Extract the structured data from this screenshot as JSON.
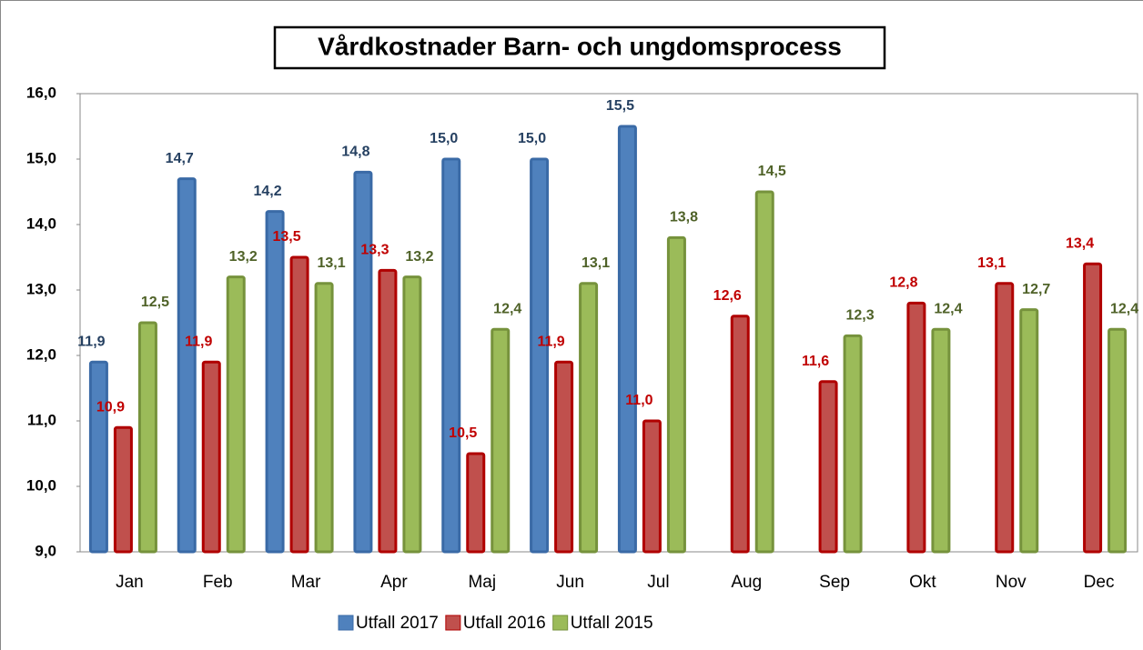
{
  "chart_data": {
    "type": "bar",
    "title": "Vårdkostnader Barn- och ungdomsprocess",
    "categories": [
      "Jan",
      "Feb",
      "Mar",
      "Apr",
      "Maj",
      "Jun",
      "Jul",
      "Aug",
      "Sep",
      "Okt",
      "Nov",
      "Dec"
    ],
    "series": [
      {
        "name": "Utfall 2017",
        "color": "#4f81bd",
        "stroke": "#3a6aa6",
        "label_color": "#254061",
        "values": [
          11.9,
          14.7,
          14.2,
          14.8,
          15.0,
          15.0,
          15.5,
          null,
          null,
          null,
          null,
          null
        ],
        "value_labels": [
          "11,9",
          "14,7",
          "14,2",
          "14,8",
          "15,0",
          "15,0",
          "15,5",
          null,
          null,
          null,
          null,
          null
        ]
      },
      {
        "name": "Utfall 2016",
        "color": "#c0504d",
        "stroke": "#b00000",
        "label_color": "#c00000",
        "values": [
          10.9,
          11.9,
          13.5,
          13.3,
          10.5,
          11.9,
          11.0,
          12.6,
          11.6,
          12.8,
          13.1,
          13.4
        ],
        "value_labels": [
          "10,9",
          "11,9",
          "13,5",
          "13,3",
          "10,5",
          "11,9",
          "11,0",
          "12,6",
          "11,6",
          "12,8",
          "13,1",
          "13,4"
        ]
      },
      {
        "name": "Utfall 2015",
        "color": "#9bbb59",
        "stroke": "#76923c",
        "label_color": "#4f6228",
        "values": [
          12.5,
          13.2,
          13.1,
          13.2,
          12.4,
          13.1,
          13.8,
          14.5,
          12.3,
          12.4,
          12.7,
          12.4
        ],
        "value_labels": [
          "12,5",
          "13,2",
          "13,1",
          "13,2",
          "12,4",
          "13,1",
          "13,8",
          "14,5",
          "12,3",
          "12,4",
          "12,7",
          "12,4"
        ]
      }
    ],
    "ylim": [
      9,
      16
    ],
    "yticks": [
      {
        "value": 9,
        "label": "9,0"
      },
      {
        "value": 10,
        "label": "10,0"
      },
      {
        "value": 11,
        "label": "11,0"
      },
      {
        "value": 12,
        "label": "12,0"
      },
      {
        "value": 13,
        "label": "13,0"
      },
      {
        "value": 14,
        "label": "14,0"
      },
      {
        "value": 15,
        "label": "15,0"
      },
      {
        "value": 16,
        "label": "16,0"
      }
    ],
    "grid": false,
    "legend": "bottom"
  }
}
